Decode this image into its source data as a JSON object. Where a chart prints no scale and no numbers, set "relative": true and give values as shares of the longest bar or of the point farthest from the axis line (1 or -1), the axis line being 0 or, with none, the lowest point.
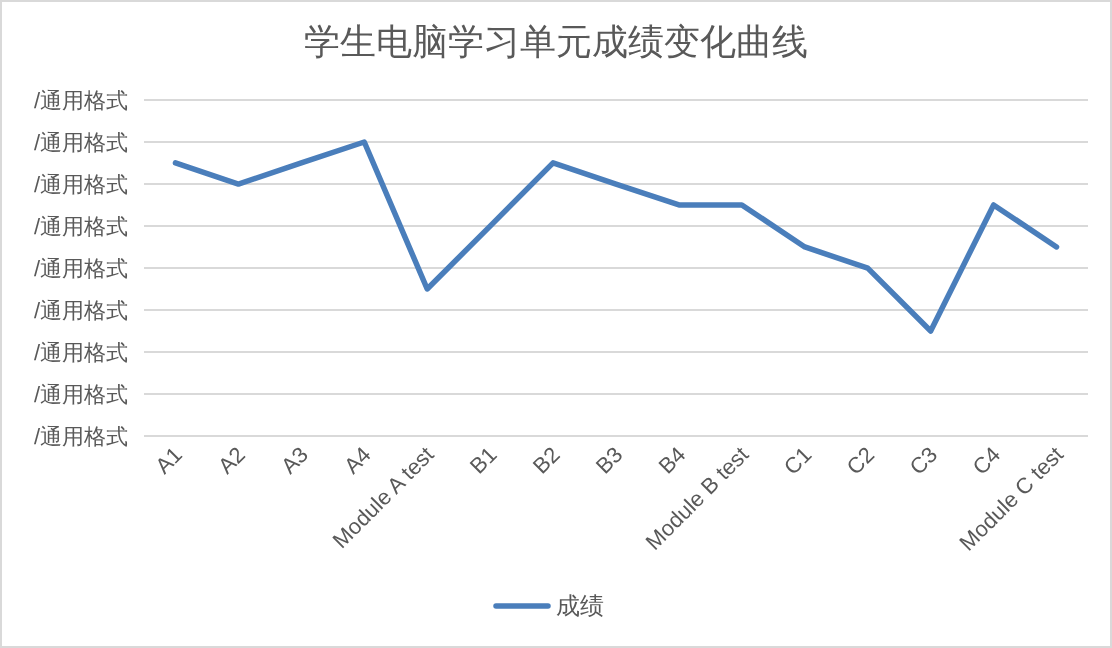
{
  "chart_data": {
    "type": "line",
    "title": "学生电脑学习单元成绩变化曲线",
    "categories": [
      "A1",
      "A2",
      "A3",
      "A4",
      "Module A test",
      "B1",
      "B2",
      "B3",
      "B4",
      "Module B test",
      "C1",
      "C2",
      "C3",
      "C4",
      "Module C test"
    ],
    "series": [
      {
        "name": "成绩",
        "color": "#4a7ebb",
        "values": [
          0.929,
          0.857,
          0.929,
          1,
          0.5,
          0.714,
          0.929,
          0.857,
          0.786,
          0.786,
          0.643,
          0.571,
          0.357,
          0.786,
          0.643
        ]
      }
    ],
    "relative": true,
    "annotations": [
      "/通用格式",
      "/通用格式",
      "/通用格式",
      "/通用格式",
      "/通用格式",
      "/通用格式",
      "/通用格式",
      "/通用格式",
      "/通用格式"
    ],
    "grid": "y",
    "legend": "bottom",
    "marker": "none",
    "line_style": "solid"
  }
}
